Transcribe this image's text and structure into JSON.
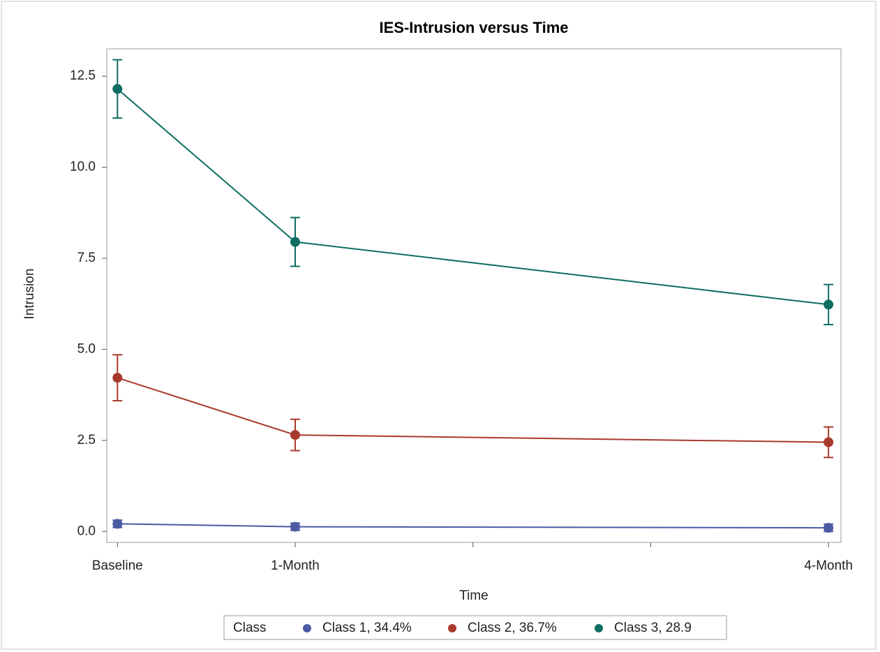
{
  "chart_data": {
    "type": "line",
    "title": "IES-Intrusion versus Time",
    "x_label": "Time",
    "y_label": "Intrusion",
    "x": [
      0,
      1,
      4
    ],
    "xlim": [
      -0.06,
      4.07
    ],
    "xticks": [
      {
        "value": 0,
        "label": "Baseline"
      },
      {
        "value": 1,
        "label": "1-Month"
      },
      {
        "value": 2,
        "label": null
      },
      {
        "value": 3,
        "label": null
      },
      {
        "value": 4,
        "label": "4-Month"
      }
    ],
    "ylim": [
      -0.3,
      13.25
    ],
    "yticks": [
      {
        "value": 0,
        "label": "0.0"
      },
      2.5,
      {
        "value": 5,
        "label": "5.0"
      },
      7.5,
      {
        "value": 10,
        "label": "10.0"
      },
      12.5
    ],
    "grid": false,
    "legend_title": "Class",
    "legend_position": "bottom",
    "series": [
      {
        "name": "Class 1, 34.4%",
        "color": "#4b5aa3",
        "values": [
          0.21,
          0.13,
          0.1
        ],
        "errors": [
          0.1,
          0.1,
          0.1
        ]
      },
      {
        "name": "Class 2, 36.7%",
        "color": "#a8392d",
        "values": [
          4.22,
          2.65,
          2.45
        ],
        "errors": [
          0.63,
          0.43,
          0.42
        ]
      },
      {
        "name": "Class 3, 28.9",
        "color": "#0e6e63",
        "values": [
          12.15,
          7.95,
          6.23
        ],
        "errors": [
          0.8,
          0.67,
          0.55
        ]
      }
    ]
  }
}
